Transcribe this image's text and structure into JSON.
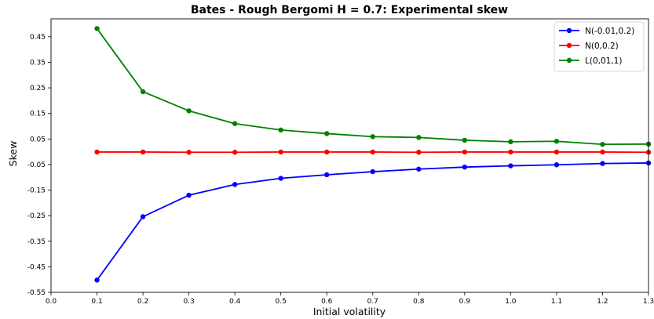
{
  "chart_data": {
    "type": "line",
    "title": "Bates - Rough Bergomi H = 0.7: Experimental skew",
    "xlabel": "Initial volatility",
    "ylabel": "Skew",
    "xlim": [
      0.0,
      1.3
    ],
    "ylim": [
      -0.55,
      0.52
    ],
    "x_ticks": [
      "0.0",
      "0.1",
      "0.2",
      "0.3",
      "0.4",
      "0.5",
      "0.6",
      "0.7",
      "0.8",
      "0.9",
      "1.0",
      "1.1",
      "1.2",
      "1.3"
    ],
    "y_ticks": [
      "0.45",
      "0.35",
      "0.25",
      "0.15",
      "0.05",
      "-0.05",
      "-0.15",
      "-0.25",
      "-0.35",
      "-0.45",
      "-0.55"
    ],
    "grid": false,
    "legend_position": "top-right",
    "x": [
      0.1,
      0.2,
      0.3,
      0.4,
      0.5,
      0.6,
      0.7,
      0.8,
      0.9,
      1.0,
      1.1,
      1.2,
      1.3
    ],
    "series": [
      {
        "name": "N(-0.01,0.2)",
        "color": "#0000ff",
        "values": [
          -0.502,
          -0.254,
          -0.17,
          -0.128,
          -0.104,
          -0.09,
          -0.078,
          -0.068,
          -0.06,
          -0.055,
          -0.051,
          -0.046,
          -0.044
        ]
      },
      {
        "name": "N(0,0.2)",
        "color": "#ff0000",
        "values": [
          -0.001,
          -0.001,
          -0.002,
          -0.002,
          -0.001,
          -0.001,
          -0.001,
          -0.002,
          -0.001,
          -0.001,
          -0.001,
          -0.001,
          -0.002
        ]
      },
      {
        "name": "L(0,01,1)",
        "color": "#008000",
        "values": [
          0.482,
          0.235,
          0.16,
          0.11,
          0.085,
          0.071,
          0.059,
          0.056,
          0.045,
          0.039,
          0.041,
          0.029,
          0.03
        ]
      }
    ]
  }
}
